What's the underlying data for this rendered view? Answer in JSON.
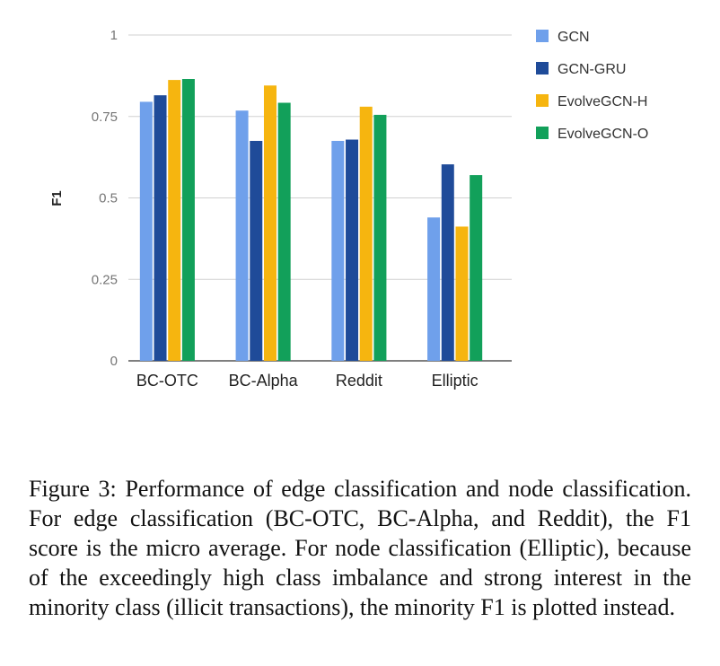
{
  "chart_data": {
    "type": "bar",
    "title": "",
    "xlabel": "",
    "ylabel": "F1",
    "ylim": [
      0,
      1
    ],
    "yticks": [
      {
        "value": 0,
        "label": "0"
      },
      {
        "value": 0.25,
        "label": "0.25"
      },
      {
        "value": 0.5,
        "label": "0.5"
      },
      {
        "value": 0.75,
        "label": "0.75"
      },
      {
        "value": 1,
        "label": "1"
      }
    ],
    "grid": true,
    "legend_position": "right",
    "categories": [
      "BC-OTC",
      "BC-Alpha",
      "Reddit",
      "Elliptic"
    ],
    "series": [
      {
        "name": "GCN",
        "color": "#6fa0eb",
        "values": [
          0.795,
          0.768,
          0.675,
          0.44
        ]
      },
      {
        "name": "GCN-GRU",
        "color": "#1f4b99",
        "values": [
          0.815,
          0.675,
          0.679,
          0.603
        ]
      },
      {
        "name": "EvolveGCN-H",
        "color": "#f6b50f",
        "values": [
          0.862,
          0.845,
          0.78,
          0.412
        ]
      },
      {
        "name": "EvolveGCN-O",
        "color": "#12a05a",
        "values": [
          0.865,
          0.792,
          0.755,
          0.57
        ]
      }
    ]
  },
  "caption": "Figure 3: Performance of edge classification and node classification. For edge classification (BC-OTC, BC-Alpha, and Reddit), the F1 score is the micro average. For node classification (Elliptic), because of the exceedingly high class imbalance and strong interest in the minority class (illicit transactions), the minority F1 is plotted instead."
}
